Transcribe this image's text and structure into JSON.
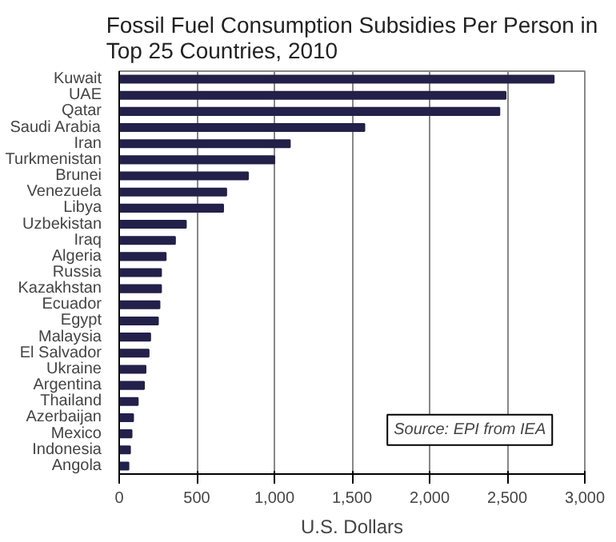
{
  "chart_data": {
    "type": "bar",
    "orientation": "horizontal",
    "title": "Fossil Fuel Consumption Subsidies Per Person in Top 25 Countries, 2010",
    "xlabel": "U.S. Dollars",
    "categories": [
      "Kuwait",
      "UAE",
      "Qatar",
      "Saudi Arabia",
      "Iran",
      "Turkmenistan",
      "Brunei",
      "Venezuela",
      "Libya",
      "Uzbekistan",
      "Iraq",
      "Algeria",
      "Russia",
      "Kazakhstan",
      "Ecuador",
      "Egypt",
      "Malaysia",
      "El Salvador",
      "Ukraine",
      "Argentina",
      "Thailand",
      "Azerbaijan",
      "Mexico",
      "Indonesia",
      "Angola"
    ],
    "values": [
      2800,
      2490,
      2450,
      1580,
      1100,
      1000,
      830,
      690,
      670,
      430,
      360,
      300,
      270,
      270,
      260,
      250,
      200,
      190,
      170,
      160,
      120,
      90,
      80,
      70,
      60
    ],
    "color": "#23204a",
    "xlim": [
      0,
      3000
    ],
    "xticks": [
      0,
      {
        "value": 500,
        "label": "500"
      },
      {
        "value": 1000,
        "label": "1,000"
      },
      {
        "value": 1500,
        "label": "1,500"
      },
      {
        "value": 2000,
        "label": "2,000"
      },
      {
        "value": 2500,
        "label": "2,500"
      },
      {
        "value": 3000,
        "label": "3,000"
      }
    ],
    "grid": "x",
    "annotations": [
      "Source: EPI from IEA"
    ]
  }
}
